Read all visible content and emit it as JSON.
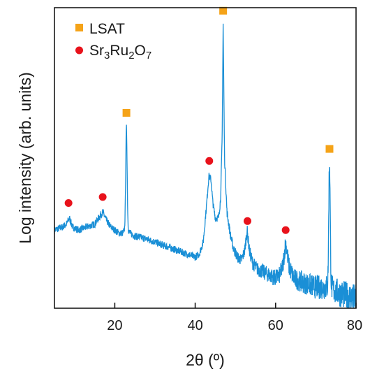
{
  "chart_data": {
    "type": "line",
    "xlabel": "2θ (º)",
    "ylabel": "Log intensity (arb. units)",
    "xlim": [
      5,
      80
    ],
    "xticks": [
      20,
      40,
      60,
      80
    ],
    "xtick_labels": [
      "20",
      "40",
      "60",
      "80"
    ],
    "ylim": [
      0,
      1
    ],
    "y_scale": "log",
    "y_ticks_shown": false,
    "grid": false,
    "legend_position": "top-left",
    "colors": {
      "trace": "#1a8fd6",
      "lsat": "#f5a318",
      "sro": "#e8121b"
    },
    "series": [
      {
        "name": "",
        "x": [
          5,
          7,
          8,
          8.7,
          9.5,
          11,
          13,
          15,
          16,
          17,
          18,
          19,
          20,
          21,
          22,
          22.6,
          22.9,
          23.2,
          23.8,
          25,
          28,
          30,
          32,
          34,
          36,
          38,
          40,
          41,
          42,
          42.8,
          43.4,
          43.9,
          44.4,
          45,
          45.8,
          46.3,
          46.7,
          46.95,
          47.3,
          47.9,
          48.8,
          49.5,
          50.5,
          51.5,
          52.3,
          52.9,
          53.5,
          54.3,
          55.5,
          57,
          58.5,
          60,
          61,
          61.8,
          62.5,
          63.3,
          64.5,
          66,
          68,
          70,
          72,
          73,
          73.4,
          73.8,
          74.5,
          76,
          78,
          80
        ],
        "y": [
          0.26,
          0.27,
          0.28,
          0.3,
          0.27,
          0.26,
          0.27,
          0.28,
          0.3,
          0.32,
          0.29,
          0.27,
          0.26,
          0.25,
          0.25,
          0.26,
          0.28,
          0.26,
          0.25,
          0.24,
          0.23,
          0.22,
          0.21,
          0.2,
          0.19,
          0.18,
          0.17,
          0.18,
          0.22,
          0.34,
          0.44,
          0.43,
          0.35,
          0.3,
          0.3,
          0.36,
          0.56,
          0.95,
          0.5,
          0.32,
          0.24,
          0.2,
          0.17,
          0.16,
          0.19,
          0.26,
          0.19,
          0.15,
          0.13,
          0.12,
          0.11,
          0.1,
          0.11,
          0.14,
          0.22,
          0.14,
          0.1,
          0.09,
          0.08,
          0.07,
          0.07,
          0.07,
          0.08,
          0.07,
          0.06,
          0.05,
          0.04,
          0.03
        ]
      }
    ],
    "narrow_peaks": [
      {
        "x": 22.9,
        "y": 0.6
      },
      {
        "x": 46.95,
        "y": 0.95
      },
      {
        "x": 73.4,
        "y": 0.49
      }
    ],
    "markers": {
      "lsat": {
        "label": "LSAT",
        "x": [
          22.9,
          46.95,
          73.4
        ],
        "y": [
          0.65,
          0.99,
          0.53
        ]
      },
      "sro": {
        "label_parts": [
          "Sr",
          "3",
          "Ru",
          "2",
          "O",
          "7"
        ],
        "x": [
          8.5,
          17,
          43.5,
          53,
          62.5
        ],
        "y": [
          0.35,
          0.37,
          0.49,
          0.29,
          0.26
        ]
      }
    }
  }
}
